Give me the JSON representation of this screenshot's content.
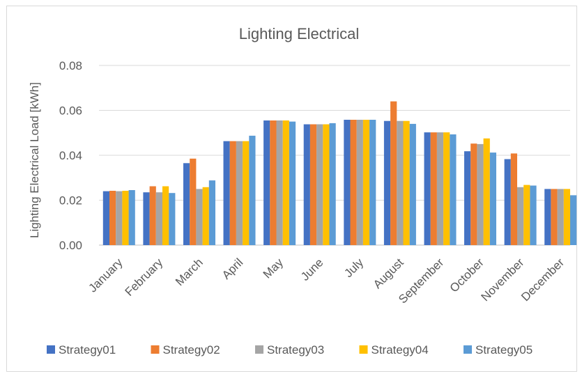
{
  "chart_data": {
    "type": "bar",
    "title": "Lighting Electrical",
    "xlabel": "",
    "ylabel": "Lighting Electrical Load [kWh]",
    "ylim": [
      0,
      0.08
    ],
    "yticks": [
      "0.00",
      "0.02",
      "0.04",
      "0.06",
      "0.08"
    ],
    "grid": true,
    "legend_position": "bottom",
    "categories": [
      "January",
      "February",
      "March",
      "April",
      "May",
      "June",
      "July",
      "August",
      "September",
      "October",
      "November",
      "December"
    ],
    "series": [
      {
        "name": "Strategy01",
        "color": "#4472c4",
        "values": [
          0.024,
          0.0235,
          0.0365,
          0.0463,
          0.0555,
          0.0538,
          0.0558,
          0.0553,
          0.0502,
          0.0418,
          0.0383,
          0.025
        ]
      },
      {
        "name": "Strategy02",
        "color": "#ed7d31",
        "values": [
          0.0242,
          0.0262,
          0.0385,
          0.0463,
          0.0555,
          0.0538,
          0.0558,
          0.064,
          0.0502,
          0.0452,
          0.0408,
          0.025
        ]
      },
      {
        "name": "Strategy03",
        "color": "#a5a5a5",
        "values": [
          0.024,
          0.0235,
          0.025,
          0.0463,
          0.0555,
          0.0538,
          0.0558,
          0.0553,
          0.0502,
          0.045,
          0.0258,
          0.025
        ]
      },
      {
        "name": "Strategy04",
        "color": "#ffc000",
        "values": [
          0.0242,
          0.0262,
          0.0258,
          0.0463,
          0.0555,
          0.0538,
          0.0558,
          0.0553,
          0.0502,
          0.0475,
          0.0268,
          0.025
        ]
      },
      {
        "name": "Strategy05",
        "color": "#5b9bd5",
        "values": [
          0.0245,
          0.0232,
          0.0288,
          0.0487,
          0.055,
          0.0543,
          0.0558,
          0.054,
          0.0493,
          0.0412,
          0.0265,
          0.0222
        ]
      }
    ]
  }
}
